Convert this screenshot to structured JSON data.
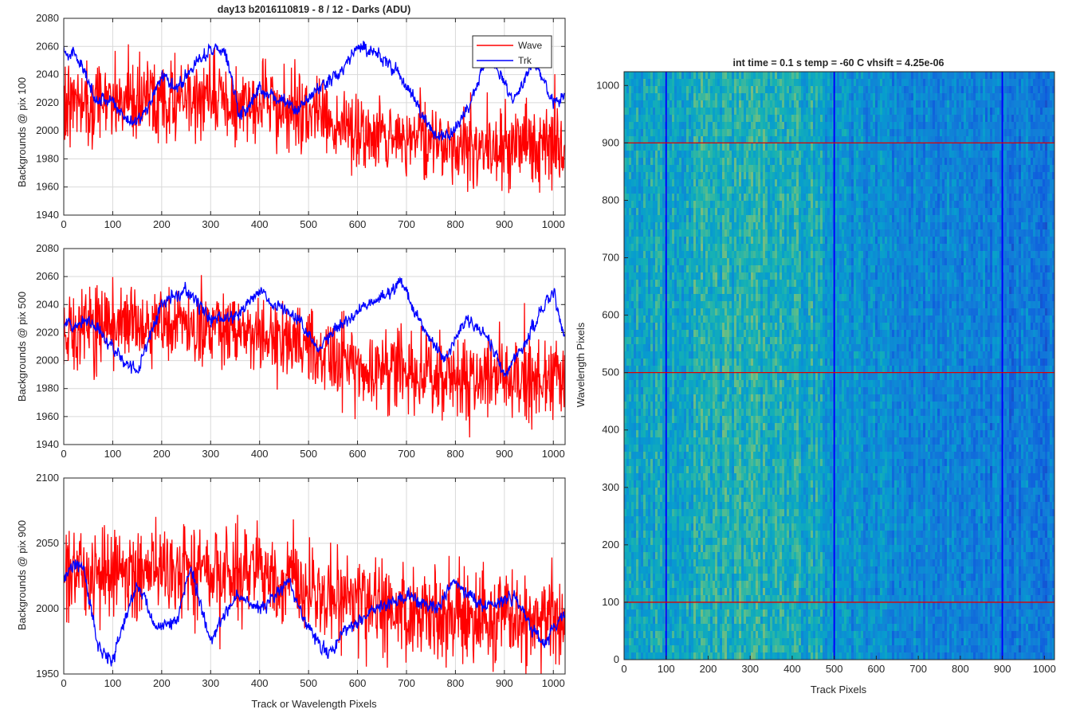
{
  "figure": {
    "title": "day13 b2016110819 - 8 / 12 - Darks (ADU)",
    "legend": {
      "placement": "top-right",
      "entries": [
        {
          "name": "Wave",
          "color": "#ff0000"
        },
        {
          "name": "Trk",
          "color": "#0000ff"
        }
      ]
    }
  },
  "chart_data": [
    {
      "type": "line",
      "ylabel": "Backgrounds @ pix 100",
      "xlabel": "",
      "xlim": [
        0,
        1024
      ],
      "ylim": [
        1940,
        2080
      ],
      "xticks": [
        "0",
        "100",
        "200",
        "300",
        "400",
        "500",
        "600",
        "700",
        "800",
        "900",
        "1000"
      ],
      "yticks": [
        "1940",
        "1960",
        "1980",
        "2000",
        "2020",
        "2040",
        "2060",
        "2080"
      ],
      "grid": true,
      "series": [
        {
          "name": "Wave",
          "color": "#ff0000",
          "x_range": [
            0,
            1023
          ],
          "mean_profile": [
            [
              0,
              2022
            ],
            [
              200,
              2022
            ],
            [
              400,
              2020
            ],
            [
              500,
              2010
            ],
            [
              600,
              1998
            ],
            [
              800,
              1993
            ],
            [
              1023,
              1988
            ]
          ],
          "noise_amplitude": 18
        },
        {
          "name": "Trk",
          "color": "#0000ff",
          "x_range": [
            0,
            1023
          ],
          "profile": [
            [
              0,
              2058
            ],
            [
              30,
              2052
            ],
            [
              60,
              2025
            ],
            [
              100,
              2020
            ],
            [
              140,
              2005
            ],
            [
              170,
              2015
            ],
            [
              200,
              2040
            ],
            [
              230,
              2030
            ],
            [
              260,
              2045
            ],
            [
              300,
              2058
            ],
            [
              330,
              2055
            ],
            [
              360,
              2010
            ],
            [
              400,
              2030
            ],
            [
              450,
              2020
            ],
            [
              480,
              2015
            ],
            [
              520,
              2030
            ],
            [
              560,
              2040
            ],
            [
              600,
              2060
            ],
            [
              640,
              2055
            ],
            [
              680,
              2042
            ],
            [
              720,
              2020
            ],
            [
              760,
              1995
            ],
            [
              800,
              2000
            ],
            [
              830,
              2020
            ],
            [
              870,
              2055
            ],
            [
              920,
              2020
            ],
            [
              960,
              2050
            ],
            [
              1000,
              2020
            ],
            [
              1023,
              2025
            ]
          ],
          "noise_amplitude": 6
        }
      ]
    },
    {
      "type": "line",
      "ylabel": "Backgrounds @ pix 500",
      "xlabel": "",
      "xlim": [
        0,
        1024
      ],
      "ylim": [
        1940,
        2080
      ],
      "xticks": [
        "0",
        "100",
        "200",
        "300",
        "400",
        "500",
        "600",
        "700",
        "800",
        "900",
        "1000"
      ],
      "yticks": [
        "1940",
        "1960",
        "1980",
        "2000",
        "2020",
        "2040",
        "2060",
        "2080"
      ],
      "grid": true,
      "series": [
        {
          "name": "Wave",
          "color": "#ff0000",
          "x_range": [
            0,
            1023
          ],
          "mean_profile": [
            [
              0,
              2022
            ],
            [
              200,
              2025
            ],
            [
              400,
              2020
            ],
            [
              500,
              2005
            ],
            [
              600,
              1995
            ],
            [
              800,
              1988
            ],
            [
              1023,
              1985
            ]
          ],
          "noise_amplitude": 18
        },
        {
          "name": "Trk",
          "color": "#0000ff",
          "x_range": [
            0,
            1023
          ],
          "profile": [
            [
              0,
              2025
            ],
            [
              50,
              2030
            ],
            [
              100,
              2010
            ],
            [
              120,
              2000
            ],
            [
              150,
              1992
            ],
            [
              200,
              2040
            ],
            [
              250,
              2050
            ],
            [
              300,
              2030
            ],
            [
              350,
              2030
            ],
            [
              400,
              2050
            ],
            [
              430,
              2040
            ],
            [
              480,
              2030
            ],
            [
              520,
              2010
            ],
            [
              550,
              2020
            ],
            [
              600,
              2035
            ],
            [
              650,
              2045
            ],
            [
              690,
              2055
            ],
            [
              740,
              2020
            ],
            [
              780,
              2000
            ],
            [
              820,
              2030
            ],
            [
              860,
              2020
            ],
            [
              900,
              1990
            ],
            [
              940,
              2010
            ],
            [
              980,
              2040
            ],
            [
              1000,
              2050
            ],
            [
              1023,
              2015
            ]
          ],
          "noise_amplitude": 6
        }
      ]
    },
    {
      "type": "line",
      "ylabel": "Backgrounds @ pix 900",
      "xlabel": "Track or Wavelength Pixels",
      "xlim": [
        0,
        1024
      ],
      "ylim": [
        1950,
        2100
      ],
      "xticks": [
        "0",
        "100",
        "200",
        "300",
        "400",
        "500",
        "600",
        "700",
        "800",
        "900",
        "1000"
      ],
      "yticks": [
        "1950",
        "2000",
        "2050",
        "2100"
      ],
      "grid": true,
      "series": [
        {
          "name": "Wave",
          "color": "#ff0000",
          "x_range": [
            0,
            1023
          ],
          "mean_profile": [
            [
              0,
              2028
            ],
            [
              200,
              2030
            ],
            [
              400,
              2025
            ],
            [
              500,
              2015
            ],
            [
              600,
              2005
            ],
            [
              800,
              1995
            ],
            [
              1023,
              1990
            ]
          ],
          "noise_amplitude": 22
        },
        {
          "name": "Trk",
          "color": "#0000ff",
          "x_range": [
            0,
            1023
          ],
          "profile": [
            [
              0,
              2025
            ],
            [
              40,
              2035
            ],
            [
              70,
              1970
            ],
            [
              100,
              1960
            ],
            [
              150,
              2020
            ],
            [
              190,
              1985
            ],
            [
              230,
              1990
            ],
            [
              260,
              2030
            ],
            [
              300,
              1975
            ],
            [
              350,
              2010
            ],
            [
              400,
              2000
            ],
            [
              460,
              2020
            ],
            [
              500,
              1985
            ],
            [
              540,
              1965
            ],
            [
              580,
              1985
            ],
            [
              640,
              2000
            ],
            [
              700,
              2010
            ],
            [
              760,
              2000
            ],
            [
              800,
              2020
            ],
            [
              860,
              2000
            ],
            [
              920,
              2010
            ],
            [
              980,
              1970
            ],
            [
              1023,
              1998
            ]
          ],
          "noise_amplitude": 7
        }
      ]
    },
    {
      "type": "heatmap",
      "title": "int time = 0.1 s   temp = -60 C   vhsift = 4.25e-06",
      "xlabel": "Track Pixels",
      "ylabel": "Wavelength Pixels",
      "xlim": [
        0,
        1024
      ],
      "ylim": [
        0,
        1024
      ],
      "xticks": [
        "0",
        "100",
        "200",
        "300",
        "400",
        "500",
        "600",
        "700",
        "800",
        "900",
        "1000"
      ],
      "yticks": [
        "0",
        "100",
        "200",
        "300",
        "400",
        "500",
        "600",
        "700",
        "800",
        "900",
        "1000"
      ],
      "colormap": "parula",
      "column_mean_profile": [
        [
          0,
          0.45
        ],
        [
          150,
          0.52
        ],
        [
          300,
          0.56
        ],
        [
          450,
          0.5
        ],
        [
          520,
          0.38
        ],
        [
          700,
          0.34
        ],
        [
          900,
          0.3
        ],
        [
          1024,
          0.28
        ]
      ],
      "dark_columns": [
        100,
        500,
        900
      ],
      "red_rows": [
        100,
        500,
        900
      ],
      "marker_color_vertical": "#0000ff",
      "marker_color_horizontal": "#e00000"
    }
  ]
}
